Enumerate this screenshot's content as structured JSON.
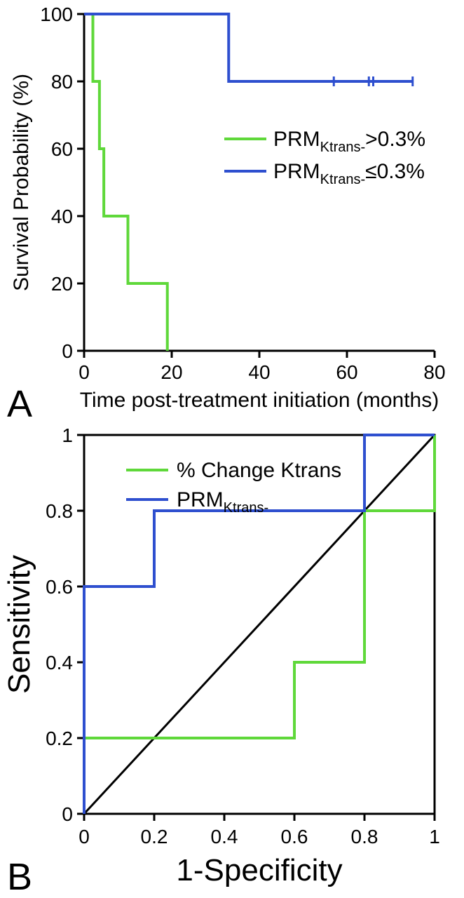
{
  "panelA": {
    "letter": "A",
    "type": "kaplan-meier",
    "xlabel": "Time post-treatment initiation (months)",
    "ylabel": "Survival Probability (%)",
    "xlim": [
      0,
      80
    ],
    "ylim": [
      0,
      100
    ],
    "xticks": [
      0,
      20,
      40,
      60,
      80
    ],
    "yticks": [
      0,
      20,
      40,
      60,
      80,
      100
    ],
    "tick_fontsize": 28,
    "label_fontsize": 30,
    "line_width": 4,
    "axis_width": 3,
    "background_color": "#ffffff",
    "series": [
      {
        "name": "PRM_Ktrans- >0.3%",
        "color": "#5fd83a",
        "label_main": "PRM",
        "label_sub": "Ktrans-",
        "label_suffix": ">0.3%",
        "points": [
          [
            0,
            100
          ],
          [
            2,
            100
          ],
          [
            2,
            80
          ],
          [
            3.5,
            80
          ],
          [
            3.5,
            60
          ],
          [
            4.5,
            60
          ],
          [
            4.5,
            40
          ],
          [
            10,
            40
          ],
          [
            10,
            20
          ],
          [
            19,
            20
          ],
          [
            19,
            0
          ]
        ]
      },
      {
        "name": "PRM_Ktrans- <=0.3%",
        "color": "#2e4fcf",
        "label_main": "PRM",
        "label_sub": "Ktrans-",
        "label_suffix": "≤0.3%",
        "points": [
          [
            0,
            100
          ],
          [
            33,
            100
          ],
          [
            33,
            80
          ],
          [
            75,
            80
          ]
        ],
        "censor_ticks": [
          57,
          65,
          66,
          75
        ]
      }
    ]
  },
  "panelB": {
    "letter": "B",
    "type": "roc",
    "xlabel": "1-Specificity",
    "ylabel": "Sensitivity",
    "xlim": [
      0,
      1
    ],
    "ylim": [
      0,
      1
    ],
    "xticks": [
      0,
      0.2,
      0.4,
      0.6,
      0.8,
      1
    ],
    "yticks": [
      0,
      0.2,
      0.4,
      0.6,
      0.8,
      1
    ],
    "xtick_labels": [
      "0",
      "0.2",
      "0.4",
      "0.6",
      "0.8",
      "1"
    ],
    "ytick_labels": [
      "0",
      "0.2",
      "0.4",
      "0.6",
      "0.8",
      "1"
    ],
    "tick_fontsize": 28,
    "label_fontsize": 44,
    "line_width": 4,
    "axis_width": 3,
    "diagonal_color": "#000000",
    "background_color": "#ffffff",
    "series": [
      {
        "name": "% Change Ktrans",
        "color": "#5fd83a",
        "label": "% Change Ktrans",
        "points": [
          [
            0,
            0
          ],
          [
            0,
            0.2
          ],
          [
            0.6,
            0.2
          ],
          [
            0.6,
            0.4
          ],
          [
            0.8,
            0.4
          ],
          [
            0.8,
            0.8
          ],
          [
            1.0,
            0.8
          ],
          [
            1.0,
            1.0
          ]
        ]
      },
      {
        "name": "PRM_Ktrans-",
        "color": "#2e4fcf",
        "label_main": "PRM",
        "label_sub": "Ktrans-",
        "points": [
          [
            0,
            0
          ],
          [
            0,
            0.6
          ],
          [
            0.2,
            0.6
          ],
          [
            0.2,
            0.8
          ],
          [
            0.8,
            0.8
          ],
          [
            0.8,
            1.0
          ],
          [
            1.0,
            1.0
          ]
        ]
      }
    ]
  }
}
